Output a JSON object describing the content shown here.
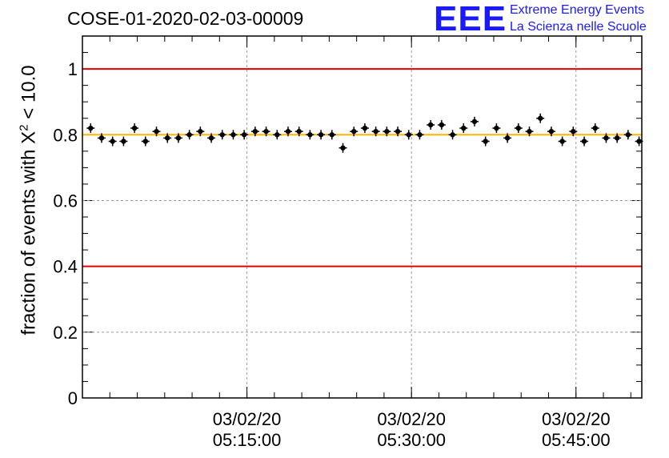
{
  "chart_data": {
    "type": "scatter",
    "title": "COSE-01-2020-02-03-00009",
    "ylabel": "fraction of events with X",
    "ylabel_sup": "2",
    "ylabel_suffix": " < 10.0",
    "ylim": [
      0,
      1.1
    ],
    "yticks": [
      "0",
      "0.2",
      "0.4",
      "0.6",
      "0.8",
      "1"
    ],
    "xlim": [
      "2020-02-03 05:00:00",
      "2020-02-03 05:51:00"
    ],
    "xticks": [
      {
        "date": "03/02/20",
        "time": "05:15:00",
        "value": "2020-02-03 05:15:00"
      },
      {
        "date": "03/02/20",
        "time": "05:30:00",
        "value": "2020-02-03 05:30:00"
      },
      {
        "date": "03/02/20",
        "time": "05:45:00",
        "value": "2020-02-03 05:45:00"
      }
    ],
    "grid": true,
    "reference_lines": [
      {
        "y": 1.0,
        "color": "#e00000"
      },
      {
        "y": 0.4,
        "color": "#e00000"
      },
      {
        "y": 0.8,
        "color": "#ffb400"
      }
    ],
    "series": [
      {
        "x": [
          "2020-02-03 05:00:45",
          "2020-02-03 05:01:45",
          "2020-02-03 05:02:45",
          "2020-02-03 05:03:45",
          "2020-02-03 05:04:45",
          "2020-02-03 05:05:45",
          "2020-02-03 05:06:45",
          "2020-02-03 05:07:45",
          "2020-02-03 05:08:45",
          "2020-02-03 05:09:45",
          "2020-02-03 05:10:45",
          "2020-02-03 05:11:45",
          "2020-02-03 05:12:45",
          "2020-02-03 05:13:45",
          "2020-02-03 05:14:45",
          "2020-02-03 05:15:45",
          "2020-02-03 05:16:45",
          "2020-02-03 05:17:45",
          "2020-02-03 05:18:45",
          "2020-02-03 05:19:45",
          "2020-02-03 05:20:45",
          "2020-02-03 05:21:45",
          "2020-02-03 05:22:45",
          "2020-02-03 05:23:45",
          "2020-02-03 05:24:45",
          "2020-02-03 05:25:45",
          "2020-02-03 05:26:45",
          "2020-02-03 05:27:45",
          "2020-02-03 05:28:45",
          "2020-02-03 05:29:45",
          "2020-02-03 05:30:45",
          "2020-02-03 05:31:45",
          "2020-02-03 05:32:45",
          "2020-02-03 05:33:45",
          "2020-02-03 05:34:45",
          "2020-02-03 05:35:45",
          "2020-02-03 05:36:45",
          "2020-02-03 05:37:45",
          "2020-02-03 05:38:45",
          "2020-02-03 05:39:45",
          "2020-02-03 05:40:45",
          "2020-02-03 05:41:45",
          "2020-02-03 05:42:45",
          "2020-02-03 05:43:45",
          "2020-02-03 05:44:45",
          "2020-02-03 05:45:45",
          "2020-02-03 05:46:45",
          "2020-02-03 05:47:45",
          "2020-02-03 05:48:45",
          "2020-02-03 05:49:45",
          "2020-02-03 05:50:45"
        ],
        "y": [
          0.82,
          0.79,
          0.78,
          0.78,
          0.82,
          0.78,
          0.81,
          0.79,
          0.79,
          0.8,
          0.81,
          0.79,
          0.8,
          0.8,
          0.8,
          0.81,
          0.81,
          0.8,
          0.81,
          0.81,
          0.8,
          0.8,
          0.8,
          0.76,
          0.81,
          0.82,
          0.81,
          0.81,
          0.81,
          0.8,
          0.8,
          0.83,
          0.83,
          0.8,
          0.82,
          0.84,
          0.78,
          0.82,
          0.79,
          0.82,
          0.81,
          0.85,
          0.81,
          0.78,
          0.81,
          0.78,
          0.82,
          0.79,
          0.79,
          0.8,
          0.78
        ],
        "color": "#000000"
      }
    ]
  },
  "logo": {
    "mark": "EEE",
    "line1": "Extreme Energy Events",
    "line2": "La Scienza nelle Scuole",
    "color": "#1a1aff"
  }
}
